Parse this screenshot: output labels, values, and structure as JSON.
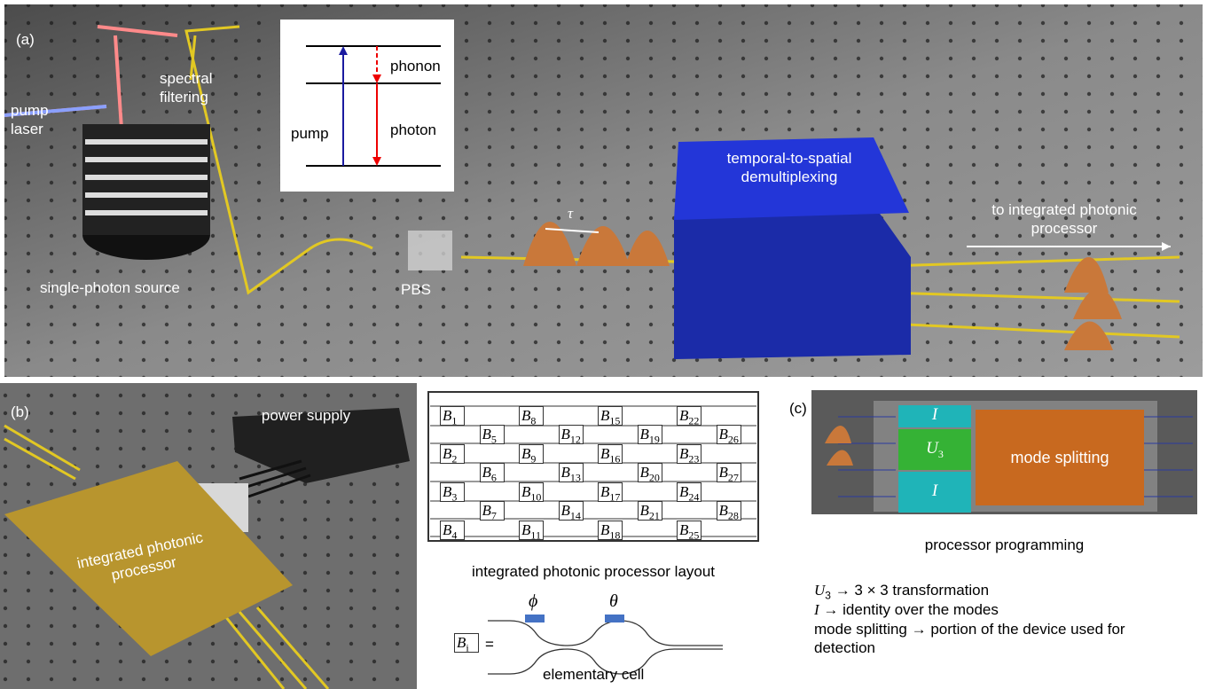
{
  "panel_a": {
    "label": "(a)",
    "pump_laser": "pump laser",
    "spectral_filtering": "spectral filtering",
    "single_photon_source": "single-photon source",
    "pbs": "PBS",
    "tau": "τ",
    "demux": "temporal-to-spatial demultiplexing",
    "to_processor": "to integrated photonic processor",
    "energy": {
      "phonon": "phonon",
      "photon": "photon",
      "pump": "pump"
    }
  },
  "panel_b": {
    "label": "(b)",
    "power_supply": "power supply",
    "processor": "integrated photonic processor"
  },
  "layout": {
    "cells": [
      {
        "symbol": "B",
        "sub": 1
      },
      {
        "symbol": "B",
        "sub": 2
      },
      {
        "symbol": "B",
        "sub": 3
      },
      {
        "symbol": "B",
        "sub": 4
      },
      {
        "symbol": "B",
        "sub": 5
      },
      {
        "symbol": "B",
        "sub": 6
      },
      {
        "symbol": "B",
        "sub": 7
      },
      {
        "symbol": "B",
        "sub": 8
      },
      {
        "symbol": "B",
        "sub": 9
      },
      {
        "symbol": "B",
        "sub": 10
      },
      {
        "symbol": "B",
        "sub": 11
      },
      {
        "symbol": "B",
        "sub": 12
      },
      {
        "symbol": "B",
        "sub": 13
      },
      {
        "symbol": "B",
        "sub": 14
      },
      {
        "symbol": "B",
        "sub": 15
      },
      {
        "symbol": "B",
        "sub": 16
      },
      {
        "symbol": "B",
        "sub": 17
      },
      {
        "symbol": "B",
        "sub": 18
      },
      {
        "symbol": "B",
        "sub": 19
      },
      {
        "symbol": "B",
        "sub": 20
      },
      {
        "symbol": "B",
        "sub": 21
      },
      {
        "symbol": "B",
        "sub": 22
      },
      {
        "symbol": "B",
        "sub": 23
      },
      {
        "symbol": "B",
        "sub": 24
      },
      {
        "symbol": "B",
        "sub": 25
      },
      {
        "symbol": "B",
        "sub": 26
      },
      {
        "symbol": "B",
        "sub": 27
      },
      {
        "symbol": "B",
        "sub": 28
      }
    ],
    "caption": "integrated photonic processor layout",
    "cell_symbol": {
      "symbol": "B",
      "sub": "i"
    },
    "equals": "=",
    "phi": "ϕ",
    "theta": "θ",
    "cell_caption": "elementary cell"
  },
  "panel_c": {
    "label": "(c)",
    "blocks": [
      {
        "symbol": "I"
      },
      {
        "symbol": "U",
        "sub": 3
      },
      {
        "symbol": "I"
      }
    ],
    "mode_splitting": "mode splitting",
    "caption": "processor programming",
    "notes": [
      {
        "symbol": "U",
        "sub": 3,
        "text": "→ 3 × 3 transformation"
      },
      {
        "symbol": "I",
        "text": "→ identity over the modes"
      },
      {
        "term": "mode splitting",
        "text": "→ portion of the device used for detection"
      }
    ]
  }
}
